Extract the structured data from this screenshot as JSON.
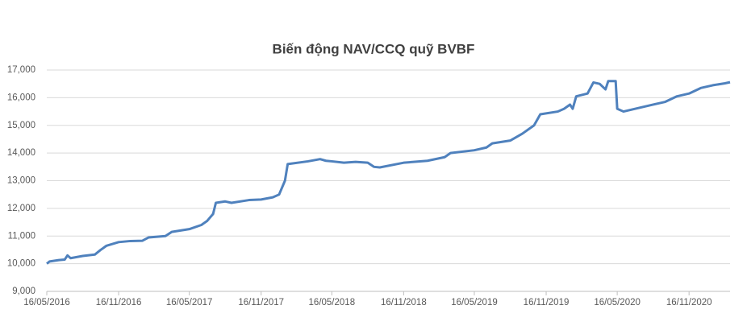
{
  "chart_data": {
    "type": "line",
    "title": "Biến động NAV/CCQ quỹ BVBF",
    "color": "#4f81bd",
    "grid": true,
    "x": [
      "16/05/2016",
      "23/05/2016",
      "16/06/2016",
      "01/07/2016",
      "08/07/2016",
      "16/07/2016",
      "16/08/2016",
      "16/09/2016",
      "01/10/2016",
      "16/10/2016",
      "16/11/2016",
      "16/12/2016",
      "16/01/2017",
      "01/02/2017",
      "16/03/2017",
      "01/04/2017",
      "16/05/2017",
      "16/06/2017",
      "01/07/2017",
      "16/07/2017",
      "23/07/2017",
      "16/08/2017",
      "01/09/2017",
      "16/10/2017",
      "16/11/2017",
      "16/12/2017",
      "01/01/2018",
      "16/01/2018",
      "23/01/2018",
      "16/03/2018",
      "16/04/2018",
      "01/05/2018",
      "16/05/2018",
      "16/06/2018",
      "16/07/2018",
      "16/08/2018",
      "01/09/2018",
      "16/09/2018",
      "16/11/2018",
      "16/01/2019",
      "01/03/2019",
      "16/03/2019",
      "16/05/2019",
      "16/06/2019",
      "01/07/2019",
      "16/08/2019",
      "16/09/2019",
      "16/10/2019",
      "01/11/2019",
      "16/12/2019",
      "01/01/2020",
      "16/01/2020",
      "23/01/2020",
      "01/02/2020",
      "01/03/2020",
      "16/03/2020",
      "01/04/2020",
      "16/04/2020",
      "23/04/2020",
      "12/05/2020",
      "16/05/2020",
      "01/06/2020",
      "16/07/2020",
      "16/08/2020",
      "16/09/2020",
      "16/10/2020",
      "16/11/2020",
      "16/12/2020",
      "16/01/2021",
      "16/02/2021",
      "01/03/2021"
    ],
    "values": [
      10000,
      10080,
      10130,
      10150,
      10300,
      10200,
      10280,
      10330,
      10500,
      10650,
      10780,
      10820,
      10830,
      10950,
      11000,
      11150,
      11250,
      11400,
      11550,
      11800,
      12200,
      12250,
      12200,
      12300,
      12320,
      12400,
      12500,
      13000,
      13600,
      13700,
      13780,
      13720,
      13700,
      13650,
      13680,
      13650,
      13500,
      13480,
      13650,
      13720,
      13850,
      14000,
      14100,
      14200,
      14350,
      14450,
      14700,
      15000,
      15400,
      15500,
      15600,
      15750,
      15600,
      16050,
      16150,
      16550,
      16500,
      16300,
      16600,
      16600,
      15600,
      15500,
      15650,
      15750,
      15850,
      16050,
      16150,
      16350,
      16450,
      16520,
      16560
    ],
    "xlim": [
      "16/05/2016",
      "01/03/2021"
    ],
    "xticks": [
      "16/05/2016",
      "16/11/2016",
      "16/05/2017",
      "16/11/2017",
      "16/05/2018",
      "16/11/2018",
      "16/05/2019",
      "16/11/2019",
      "16/05/2020",
      "16/11/2020"
    ],
    "ylim": [
      9000,
      17000
    ],
    "yticks": [
      {
        "value": 9000,
        "label": "9,000"
      },
      {
        "value": 10000,
        "label": "10,000"
      },
      {
        "value": 11000,
        "label": "11,000"
      },
      {
        "value": 12000,
        "label": "12,000"
      },
      {
        "value": 13000,
        "label": "13,000"
      },
      {
        "value": 14000,
        "label": "14,000"
      },
      {
        "value": 15000,
        "label": "15,000"
      },
      {
        "value": 16000,
        "label": "16,000"
      },
      {
        "value": 17000,
        "label": "17,000"
      }
    ]
  }
}
